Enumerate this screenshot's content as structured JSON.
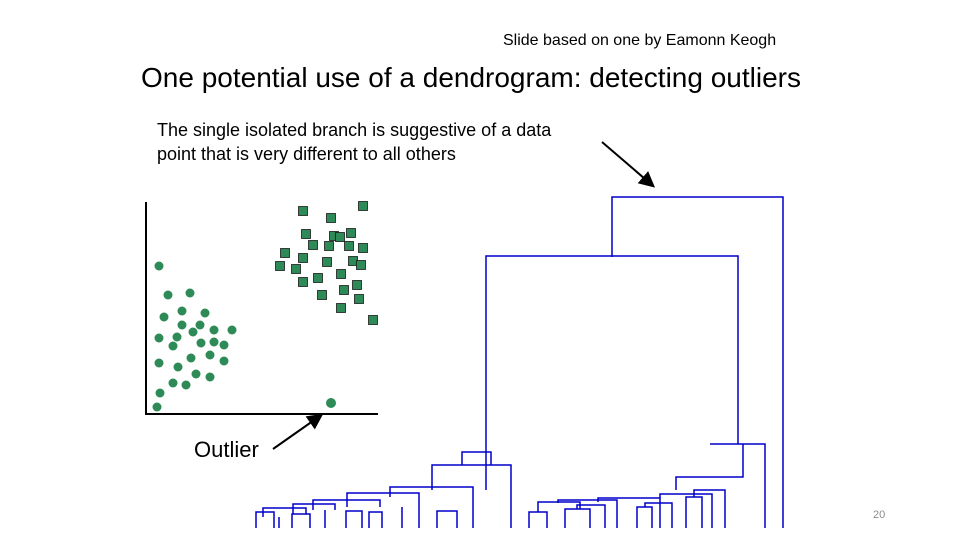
{
  "slide": {
    "credit": "Slide based on one by Eamonn Keogh",
    "title": "One potential use of a dendrogram: detecting outliers",
    "annotation_line1": "The single isolated branch is suggestive of a data",
    "annotation_line2": "point that is very different to all others",
    "outlier_label": "Outlier",
    "page_number": "20"
  },
  "colors": {
    "dendrogram": "#0000cc",
    "point_fill": "#2e8b57",
    "square_fill": "#2e8b57",
    "axis": "#000000"
  }
}
